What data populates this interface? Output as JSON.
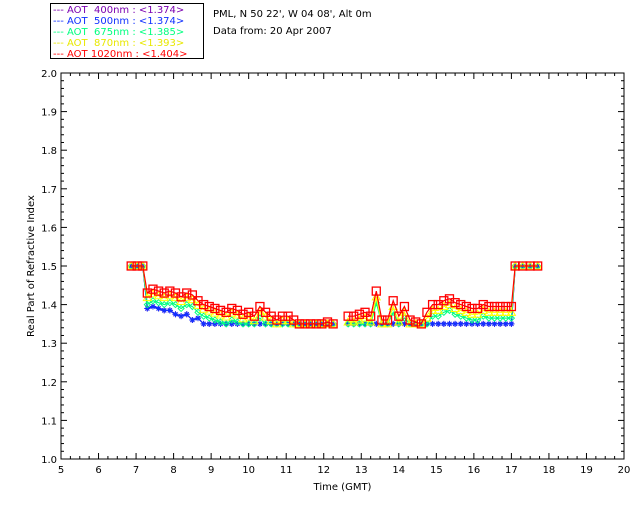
{
  "info": {
    "location": "PML, N 50 22', W 04 08', Alt 0m",
    "date": "Data from: 20 Apr 2007"
  },
  "chart_data": {
    "type": "line",
    "xlabel": "Time (GMT)",
    "ylabel": "Real Part of Refractive Index",
    "xlim": [
      5,
      20
    ],
    "ylim": [
      1.0,
      2.0
    ],
    "xticks": [
      "5",
      "6",
      "7",
      "8",
      "9",
      "10",
      "11",
      "12",
      "13",
      "14",
      "15",
      "16",
      "17",
      "18",
      "19",
      "20"
    ],
    "yticks": [
      "1.0",
      "1.1",
      "1.2",
      "1.3",
      "1.4",
      "1.5",
      "1.6",
      "1.7",
      "1.8",
      "1.9",
      "2.0"
    ],
    "legend_position": "top-left-outside",
    "x": [
      6.87,
      7.03,
      7.18,
      7.3,
      7.45,
      7.6,
      7.75,
      7.9,
      8.05,
      8.2,
      8.35,
      8.5,
      8.65,
      8.8,
      8.95,
      9.1,
      9.25,
      9.4,
      9.55,
      9.7,
      9.85,
      10.0,
      10.15,
      10.3,
      10.45,
      10.6,
      10.75,
      10.9,
      11.05,
      11.2,
      11.35,
      11.5,
      11.65,
      11.8,
      11.95,
      12.1,
      12.25,
      null,
      12.65,
      12.8,
      12.95,
      13.1,
      13.25,
      13.4,
      13.55,
      13.7,
      13.85,
      14.0,
      14.15,
      14.3,
      14.45,
      14.6,
      14.75,
      14.9,
      15.05,
      15.2,
      15.35,
      15.5,
      15.65,
      15.8,
      15.95,
      16.1,
      16.25,
      16.4,
      16.55,
      16.7,
      16.85,
      17.0,
      17.1,
      17.3,
      17.5,
      17.7
    ],
    "series": [
      {
        "name": "AOT  400nm",
        "label": "--- AOT  400nm : <1.374>",
        "color": "#7a00b0",
        "marker": "asterisk",
        "values": [
          1.5,
          1.5,
          1.5,
          1.39,
          1.395,
          1.39,
          1.385,
          1.385,
          1.375,
          1.37,
          1.375,
          1.36,
          1.365,
          1.35,
          1.35,
          1.35,
          1.35,
          1.35,
          1.35,
          1.35,
          1.35,
          1.35,
          1.35,
          1.35,
          1.35,
          1.35,
          1.35,
          1.35,
          1.35,
          1.35,
          1.35,
          1.35,
          1.35,
          1.35,
          1.35,
          1.35,
          1.35,
          null,
          1.35,
          1.35,
          1.35,
          1.35,
          1.35,
          1.35,
          1.35,
          1.35,
          1.35,
          1.35,
          1.35,
          1.35,
          1.35,
          1.35,
          1.35,
          1.35,
          1.35,
          1.35,
          1.35,
          1.35,
          1.35,
          1.35,
          1.35,
          1.35,
          1.35,
          1.35,
          1.35,
          1.35,
          1.35,
          1.35,
          1.5,
          1.5,
          1.5,
          1.5
        ]
      },
      {
        "name": "AOT  500nm",
        "label": "--- AOT  500nm : <1.374>",
        "color": "#1030ff",
        "marker": "asterisk",
        "values": [
          1.5,
          1.5,
          1.5,
          1.39,
          1.395,
          1.39,
          1.385,
          1.385,
          1.375,
          1.37,
          1.375,
          1.36,
          1.365,
          1.35,
          1.35,
          1.35,
          1.35,
          1.35,
          1.35,
          1.35,
          1.35,
          1.35,
          1.35,
          1.35,
          1.35,
          1.35,
          1.35,
          1.35,
          1.35,
          1.35,
          1.35,
          1.35,
          1.35,
          1.35,
          1.35,
          1.35,
          1.35,
          null,
          1.35,
          1.35,
          1.35,
          1.35,
          1.35,
          1.35,
          1.35,
          1.35,
          1.35,
          1.35,
          1.35,
          1.35,
          1.35,
          1.35,
          1.35,
          1.35,
          1.35,
          1.35,
          1.35,
          1.35,
          1.35,
          1.35,
          1.35,
          1.35,
          1.35,
          1.35,
          1.35,
          1.35,
          1.35,
          1.35,
          1.5,
          1.5,
          1.5,
          1.5
        ]
      },
      {
        "name": "AOT  675nm",
        "label": "--- AOT  675nm : <1.385>",
        "color": "#00ff80",
        "marker": "diamond",
        "values": [
          1.5,
          1.5,
          1.5,
          1.4,
          1.41,
          1.405,
          1.4,
          1.405,
          1.4,
          1.39,
          1.4,
          1.395,
          1.38,
          1.37,
          1.365,
          1.36,
          1.355,
          1.35,
          1.36,
          1.355,
          1.35,
          1.35,
          1.35,
          1.365,
          1.35,
          1.35,
          1.35,
          1.35,
          1.35,
          1.35,
          1.35,
          1.35,
          1.35,
          1.35,
          1.35,
          1.35,
          1.35,
          null,
          1.35,
          1.35,
          1.35,
          1.35,
          1.35,
          1.405,
          1.35,
          1.35,
          1.38,
          1.35,
          1.365,
          1.35,
          1.35,
          1.35,
          1.35,
          1.37,
          1.37,
          1.38,
          1.385,
          1.375,
          1.37,
          1.365,
          1.36,
          1.36,
          1.37,
          1.365,
          1.365,
          1.365,
          1.365,
          1.365,
          1.5,
          1.5,
          1.5,
          1.5
        ]
      },
      {
        "name": "AOT  870nm",
        "label": "--- AOT  870nm : <1.393>",
        "color": "#ffff00",
        "marker": "triangle",
        "values": [
          1.5,
          1.5,
          1.5,
          1.418,
          1.428,
          1.423,
          1.418,
          1.423,
          1.418,
          1.408,
          1.418,
          1.413,
          1.398,
          1.388,
          1.383,
          1.378,
          1.373,
          1.368,
          1.378,
          1.373,
          1.363,
          1.368,
          1.358,
          1.383,
          1.368,
          1.358,
          1.35,
          1.358,
          1.358,
          1.35,
          1.35,
          1.35,
          1.35,
          1.35,
          1.35,
          1.35,
          1.35,
          null,
          1.355,
          1.355,
          1.36,
          1.365,
          1.355,
          1.42,
          1.35,
          1.35,
          1.395,
          1.355,
          1.38,
          1.35,
          1.35,
          1.35,
          1.365,
          1.385,
          1.385,
          1.395,
          1.4,
          1.39,
          1.385,
          1.38,
          1.375,
          1.375,
          1.385,
          1.38,
          1.38,
          1.38,
          1.38,
          1.38,
          1.5,
          1.5,
          1.5,
          1.5
        ]
      },
      {
        "name": "AOT 1020nm",
        "label": "--- AOT 1020nm : <1.404>",
        "color": "#ff0000",
        "marker": "square",
        "values": [
          1.5,
          1.5,
          1.5,
          1.43,
          1.44,
          1.435,
          1.43,
          1.435,
          1.43,
          1.42,
          1.43,
          1.425,
          1.41,
          1.4,
          1.395,
          1.39,
          1.385,
          1.38,
          1.39,
          1.385,
          1.375,
          1.38,
          1.37,
          1.395,
          1.38,
          1.37,
          1.36,
          1.37,
          1.37,
          1.36,
          1.35,
          1.35,
          1.35,
          1.35,
          1.35,
          1.355,
          1.35,
          null,
          1.37,
          1.37,
          1.375,
          1.38,
          1.37,
          1.435,
          1.36,
          1.36,
          1.41,
          1.37,
          1.395,
          1.36,
          1.355,
          1.35,
          1.38,
          1.4,
          1.4,
          1.41,
          1.415,
          1.405,
          1.4,
          1.395,
          1.39,
          1.39,
          1.4,
          1.395,
          1.395,
          1.395,
          1.395,
          1.395,
          1.5,
          1.5,
          1.5,
          1.5
        ]
      }
    ]
  }
}
